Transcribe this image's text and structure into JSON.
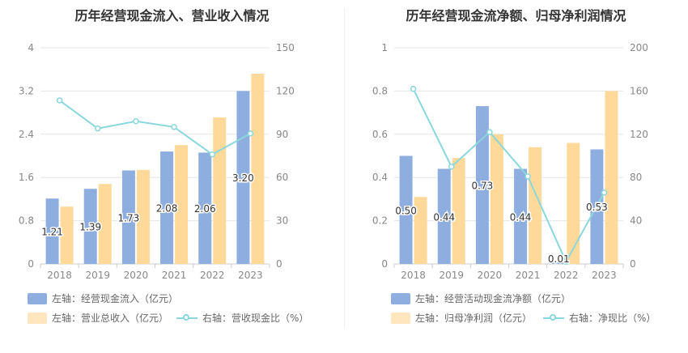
{
  "colors": {
    "bar_a": "#8eaee0",
    "bar_b": "#ffd99a",
    "line": "#8ad7dc",
    "grid": "#e6e6e6",
    "axis_text": "#888888"
  },
  "charts": [
    {
      "title": "历年经营现金流入、营业收入情况",
      "chart_data": {
        "type": "bar",
        "categories": [
          "2018",
          "2019",
          "2020",
          "2021",
          "2022",
          "2023"
        ],
        "left_axis": {
          "ticks": [
            "0",
            "0.8",
            "1.6",
            "2.4",
            "3.2",
            "4"
          ],
          "ylim": [
            0,
            4
          ]
        },
        "right_axis": {
          "ticks": [
            "0",
            "30",
            "60",
            "90",
            "120",
            "150"
          ],
          "ylim": [
            0,
            150
          ]
        },
        "series": [
          {
            "name": "左轴：经营现金流入（亿元）",
            "kind": "bar",
            "axis": "left",
            "values": [
              1.21,
              1.39,
              1.73,
              2.08,
              2.06,
              3.2
            ],
            "labels": [
              "1.21",
              "1.39",
              "1.73",
              "2.08",
              "2.06",
              "3.20"
            ]
          },
          {
            "name": "左轴：营业总收入（亿元）",
            "kind": "bar",
            "axis": "left",
            "values": [
              1.06,
              1.48,
              1.74,
              2.2,
              2.71,
              3.52
            ]
          },
          {
            "name": "右轴：营收现金比（%）",
            "kind": "line",
            "axis": "right",
            "values": [
              113.5,
              94.0,
              99.0,
              95.0,
              76.0,
              90.5
            ]
          }
        ]
      }
    },
    {
      "title": "历年经营现金流净额、归母净利润情况",
      "chart_data": {
        "type": "bar",
        "categories": [
          "2018",
          "2019",
          "2020",
          "2021",
          "2022",
          "2023"
        ],
        "left_axis": {
          "ticks": [
            "0",
            "0.2",
            "0.4",
            "0.6",
            "0.8",
            "1"
          ],
          "ylim": [
            0,
            1
          ]
        },
        "right_axis": {
          "ticks": [
            "0",
            "40",
            "80",
            "120",
            "160",
            "200"
          ],
          "ylim": [
            0,
            200
          ]
        },
        "series": [
          {
            "name": "左轴：经营活动现金流净额（亿元）",
            "kind": "bar",
            "axis": "left",
            "values": [
              0.5,
              0.44,
              0.73,
              0.44,
              0.01,
              0.53
            ],
            "labels": [
              "0.50",
              "0.44",
              "0.73",
              "0.44",
              "0.01",
              "0.53"
            ]
          },
          {
            "name": "左轴：归母净利润（亿元）",
            "kind": "bar",
            "axis": "left",
            "values": [
              0.31,
              0.49,
              0.6,
              0.54,
              0.56,
              0.8
            ]
          },
          {
            "name": "右轴：净现比（%）",
            "kind": "line",
            "axis": "right",
            "values": [
              162,
              90,
              122,
              81,
              2,
              66
            ]
          }
        ]
      }
    }
  ]
}
